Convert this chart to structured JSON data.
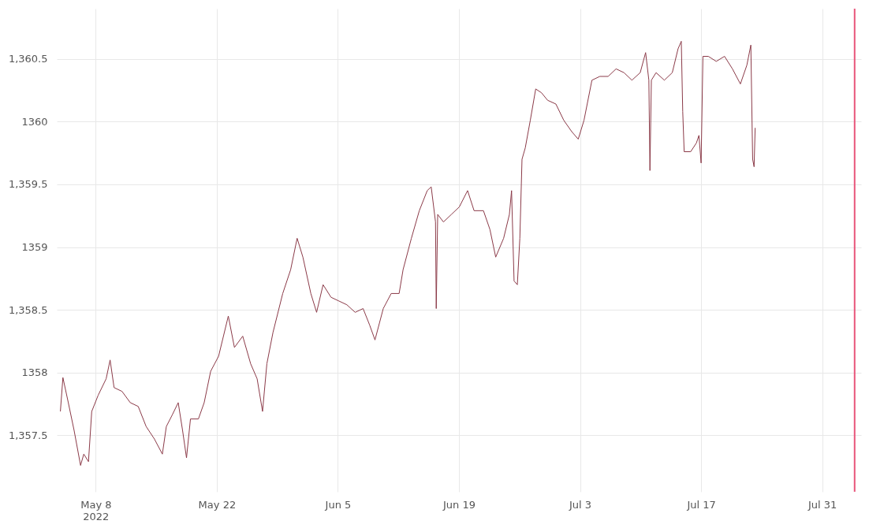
{
  "chart_data": {
    "type": "line",
    "x": [
      "2022-05-03T22:00",
      "2022-05-04T05:00",
      "2022-05-04T20:00",
      "2022-05-05T12:00",
      "2022-05-06T06:00",
      "2022-05-06T15:00",
      "2022-05-07T04:00",
      "2022-05-07T13:00",
      "2022-05-08T07:00",
      "2022-05-09T05:00",
      "2022-05-09T16:00",
      "2022-05-10T03:00",
      "2022-05-11T01:00",
      "2022-05-12T00:00",
      "2022-05-12T22:00",
      "2022-05-13T20:00",
      "2022-05-14T19:00",
      "2022-05-15T17:00",
      "2022-05-16T04:00",
      "2022-05-16T20:00",
      "2022-05-17T13:00",
      "2022-05-18T01:00",
      "2022-05-18T12:00",
      "2022-05-18T23:00",
      "2022-05-19T21:00",
      "2022-05-20T13:00",
      "2022-05-21T07:00",
      "2022-05-22T05:00",
      "2022-05-23T08:00",
      "2022-05-24T01:00",
      "2022-05-25T00:00",
      "2022-05-25T22:00",
      "2022-05-26T16:00",
      "2022-05-27T07:00",
      "2022-05-27T19:00",
      "2022-05-28T12:00",
      "2022-05-29T15:00",
      "2022-05-30T13:00",
      "2022-05-31T07:00",
      "2022-05-31T23:00",
      "2022-06-01T21:00",
      "2022-06-02T13:00",
      "2022-06-03T07:00",
      "2022-06-04T05:00",
      "2022-06-05T03:00",
      "2022-06-06T01:00",
      "2022-06-07T00:00",
      "2022-06-07T22:00",
      "2022-06-08T16:00",
      "2022-06-09T07:00",
      "2022-06-10T06:00",
      "2022-06-11T04:00",
      "2022-06-12T02:00",
      "2022-06-12T13:00",
      "2022-06-13T12:00",
      "2022-06-14T10:00",
      "2022-06-15T08:00",
      "2022-06-15T19:00",
      "2022-06-16T07:00",
      "2022-06-16T09:00",
      "2022-06-16T13:00",
      "2022-06-17T05:00",
      "2022-06-18T03:00",
      "2022-06-19T01:00",
      "2022-06-20T00:00",
      "2022-06-20T18:00",
      "2022-06-21T20:00",
      "2022-06-22T14:00",
      "2022-06-23T06:00",
      "2022-06-24T04:00",
      "2022-06-24T20:00",
      "2022-06-25T02:00",
      "2022-06-25T09:00",
      "2022-06-25T18:00",
      "2022-06-26T01:00",
      "2022-06-26T07:00",
      "2022-06-26T16:00",
      "2022-06-27T06:00",
      "2022-06-27T21:00",
      "2022-06-28T13:00",
      "2022-06-29T06:00",
      "2022-06-30T05:00",
      "2022-07-01T03:00",
      "2022-07-02T01:00",
      "2022-07-02T19:00",
      "2022-07-03T11:00",
      "2022-07-04T09:00",
      "2022-07-05T07:00",
      "2022-07-06T06:00",
      "2022-07-07T04:00",
      "2022-07-08T02:00",
      "2022-07-09T00:00",
      "2022-07-09T23:00",
      "2022-07-10T14:00",
      "2022-07-10T23:00",
      "2022-07-11T02:00",
      "2022-07-11T06:00",
      "2022-07-11T19:00",
      "2022-07-12T18:00",
      "2022-07-13T16:00",
      "2022-07-14T08:00",
      "2022-07-14T17:00",
      "2022-07-14T21:00",
      "2022-07-15T01:00",
      "2022-07-15T19:00",
      "2022-07-16T11:00",
      "2022-07-16T18:00",
      "2022-07-17T00:00",
      "2022-07-17T05:00",
      "2022-07-17T20:00",
      "2022-07-18T18:00",
      "2022-07-19T17:00",
      "2022-07-20T15:00",
      "2022-07-21T13:00",
      "2022-07-22T07:00",
      "2022-07-22T18:00",
      "2022-07-22T23:00",
      "2022-07-23T03:00",
      "2022-07-23T06:00"
    ],
    "series": [
      {
        "color": "#8b3a48",
        "values": [
          1357.69,
          1357.96,
          1357.76,
          1357.54,
          1357.26,
          1357.35,
          1357.29,
          1357.69,
          1357.82,
          1357.95,
          1358.1,
          1357.88,
          1357.85,
          1357.76,
          1357.73,
          1357.57,
          1357.47,
          1357.35,
          1357.57,
          1357.66,
          1357.76,
          1357.54,
          1357.32,
          1357.63,
          1357.63,
          1357.76,
          1358.01,
          1358.13,
          1358.45,
          1358.2,
          1358.29,
          1358.07,
          1357.95,
          1357.69,
          1358.07,
          1358.32,
          1358.63,
          1358.82,
          1359.07,
          1358.92,
          1358.63,
          1358.48,
          1358.7,
          1358.6,
          1358.57,
          1358.54,
          1358.48,
          1358.51,
          1358.38,
          1358.26,
          1358.51,
          1358.63,
          1358.63,
          1358.82,
          1359.07,
          1359.29,
          1359.45,
          1359.48,
          1359.2,
          1358.51,
          1359.26,
          1359.2,
          1359.26,
          1359.32,
          1359.45,
          1359.29,
          1359.29,
          1359.14,
          1358.92,
          1359.07,
          1359.26,
          1359.45,
          1358.73,
          1358.7,
          1359.07,
          1359.7,
          1359.79,
          1360.01,
          1360.26,
          1360.23,
          1360.17,
          1360.14,
          1360.01,
          1359.92,
          1359.86,
          1360.01,
          1360.33,
          1360.36,
          1360.36,
          1360.42,
          1360.39,
          1360.33,
          1360.39,
          1360.55,
          1360.33,
          1359.61,
          1360.33,
          1360.39,
          1360.33,
          1360.39,
          1360.58,
          1360.64,
          1360.08,
          1359.76,
          1359.76,
          1359.83,
          1359.89,
          1359.67,
          1360.52,
          1360.52,
          1360.48,
          1360.52,
          1360.42,
          1360.3,
          1360.45,
          1360.61,
          1359.7,
          1359.64,
          1359.95
        ]
      }
    ],
    "xlim": [
      "2022-05-03T12:00",
      "2022-08-04T12:00"
    ],
    "xticks": [
      {
        "value": "2022-05-08",
        "label": "May 8\n2022"
      },
      {
        "value": "2022-05-22",
        "label": "May 22"
      },
      {
        "value": "2022-06-05",
        "label": "Jun 5"
      },
      {
        "value": "2022-06-19",
        "label": "Jun 19"
      },
      {
        "value": "2022-07-03",
        "label": "Jul 3"
      },
      {
        "value": "2022-07-17",
        "label": "Jul 17"
      },
      {
        "value": "2022-07-31",
        "label": "Jul 31"
      }
    ],
    "ylim": [
      1357.05,
      1360.9
    ],
    "yticks": [
      {
        "value": 1357.5,
        "label": "1,357.5"
      },
      1358,
      {
        "value": 1358.5,
        "label": "1,358.5"
      },
      1359,
      {
        "value": 1359.5,
        "label": "1,359.5"
      },
      1360,
      {
        "value": 1360.5,
        "label": "1,360.5"
      }
    ],
    "ref_lines": [
      {
        "axis": "x",
        "value": "2022-08-03T18:00",
        "color": "#e8557a"
      }
    ],
    "grid": true,
    "line_style": "solid",
    "marker": "none"
  }
}
